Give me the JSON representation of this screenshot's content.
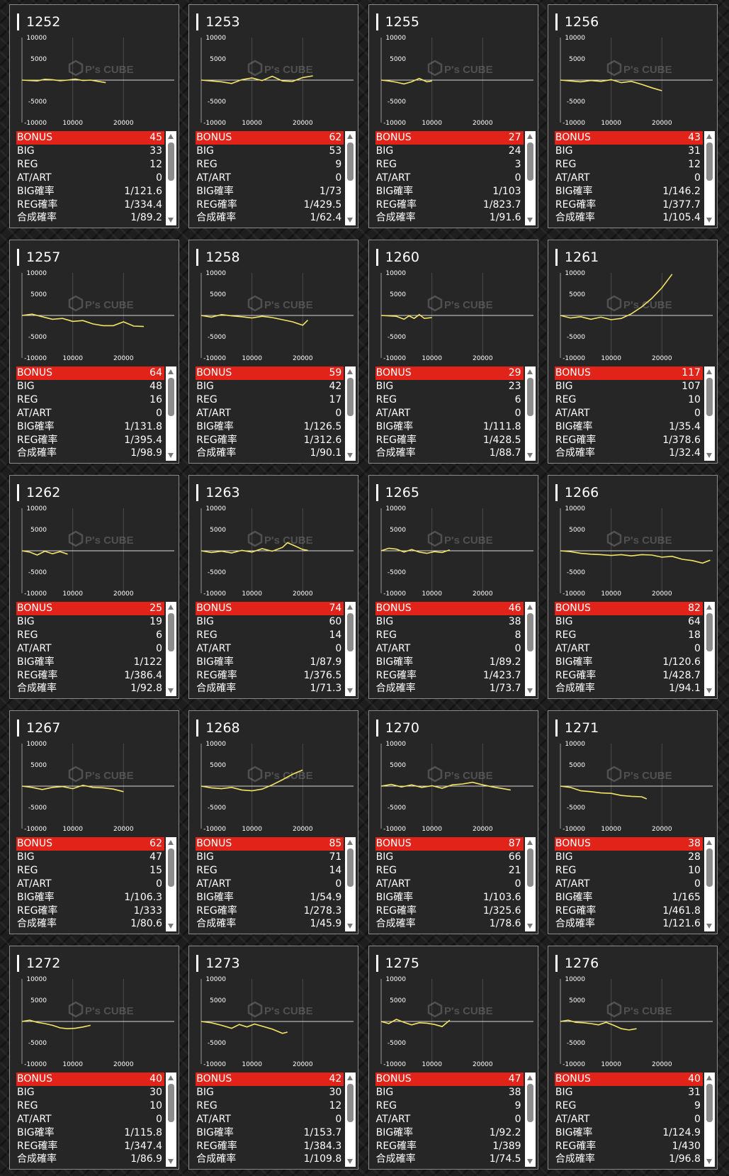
{
  "labels": {
    "bonus": "BONUS",
    "big": "BIG",
    "reg": "REG",
    "atart": "AT/ART",
    "big_prob": "BIG確率",
    "reg_prob": "REG確率",
    "total_prob": "合成確率"
  },
  "axis": {
    "y_ticks": [
      "10000",
      "5000",
      "-5000",
      "-10000"
    ],
    "x_ticks": [
      "10000",
      "20000"
    ]
  },
  "watermark": {
    "logo": "P's CUBE"
  },
  "colors": {
    "line": "#f2e566",
    "bonus_bar": "#e2231a",
    "background": "#262626"
  },
  "machines": [
    {
      "num": "1252",
      "bonus": "45",
      "big": "33",
      "reg": "12",
      "atart": "0",
      "big_prob": "1/121.6",
      "reg_prob": "1/334.4",
      "total_prob": "1/89.2",
      "chart_data": {
        "type": "line",
        "xlim": [
          0,
          30000
        ],
        "ylim": [
          -10000,
          10000
        ],
        "x": [
          0,
          1500,
          3000,
          4500,
          6000,
          7500,
          9000,
          10500,
          12000,
          13500,
          15000,
          16500
        ],
        "y": [
          0,
          -100,
          -200,
          200,
          100,
          -150,
          0,
          250,
          -100,
          0,
          -300,
          -600
        ]
      }
    },
    {
      "num": "1253",
      "bonus": "62",
      "big": "53",
      "reg": "9",
      "atart": "0",
      "big_prob": "1/73",
      "reg_prob": "1/429.5",
      "total_prob": "1/62.4",
      "chart_data": {
        "type": "line",
        "xlim": [
          0,
          30000
        ],
        "ylim": [
          -10000,
          10000
        ],
        "x": [
          0,
          2000,
          4000,
          6000,
          8000,
          10000,
          12000,
          14000,
          16000,
          18000,
          20000,
          22000
        ],
        "y": [
          0,
          -200,
          -400,
          -800,
          100,
          500,
          -100,
          900,
          -200,
          -300,
          600,
          1000
        ]
      }
    },
    {
      "num": "1255",
      "bonus": "27",
      "big": "24",
      "reg": "3",
      "atart": "0",
      "big_prob": "1/103",
      "reg_prob": "1/823.7",
      "total_prob": "1/91.6",
      "chart_data": {
        "type": "line",
        "xlim": [
          0,
          30000
        ],
        "ylim": [
          -10000,
          10000
        ],
        "x": [
          0,
          1500,
          3000,
          4500,
          6000,
          7500,
          9000,
          10000
        ],
        "y": [
          0,
          -200,
          -500,
          -900,
          -400,
          400,
          -400,
          -200
        ]
      }
    },
    {
      "num": "1256",
      "bonus": "43",
      "big": "31",
      "reg": "12",
      "atart": "0",
      "big_prob": "1/146.2",
      "reg_prob": "1/377.7",
      "total_prob": "1/105.4",
      "chart_data": {
        "type": "line",
        "xlim": [
          0,
          30000
        ],
        "ylim": [
          -10000,
          10000
        ],
        "x": [
          0,
          2000,
          4000,
          6000,
          8000,
          10000,
          12000,
          14000,
          16000,
          18000,
          20000
        ],
        "y": [
          0,
          -200,
          -400,
          -100,
          -300,
          100,
          -600,
          -300,
          -1000,
          -1800,
          -2500
        ]
      }
    },
    {
      "num": "1257",
      "bonus": "64",
      "big": "48",
      "reg": "16",
      "atart": "0",
      "big_prob": "1/131.8",
      "reg_prob": "1/395.4",
      "total_prob": "1/98.9",
      "chart_data": {
        "type": "line",
        "xlim": [
          0,
          30000
        ],
        "ylim": [
          -10000,
          10000
        ],
        "x": [
          0,
          2000,
          4000,
          6000,
          8000,
          10000,
          12000,
          14000,
          16000,
          18000,
          20000,
          22000,
          24000
        ],
        "y": [
          0,
          300,
          -300,
          -900,
          -700,
          -1400,
          -1200,
          -2000,
          -2400,
          -2400,
          -1500,
          -2500,
          -2600
        ]
      }
    },
    {
      "num": "1258",
      "bonus": "59",
      "big": "42",
      "reg": "17",
      "atart": "0",
      "big_prob": "1/126.5",
      "reg_prob": "1/312.6",
      "total_prob": "1/90.1",
      "chart_data": {
        "type": "line",
        "xlim": [
          0,
          30000
        ],
        "ylim": [
          -10000,
          10000
        ],
        "x": [
          0,
          2000,
          4000,
          6000,
          8000,
          10000,
          12000,
          14000,
          16000,
          18000,
          20000,
          21000
        ],
        "y": [
          0,
          -400,
          200,
          -100,
          -300,
          -600,
          -200,
          -500,
          -1000,
          -1500,
          -2300,
          -1100
        ]
      }
    },
    {
      "num": "1260",
      "bonus": "29",
      "big": "23",
      "reg": "6",
      "atart": "0",
      "big_prob": "1/111.8",
      "reg_prob": "1/428.5",
      "total_prob": "1/88.7",
      "chart_data": {
        "type": "line",
        "xlim": [
          0,
          30000
        ],
        "ylim": [
          -10000,
          10000
        ],
        "x": [
          0,
          1500,
          3000,
          4500,
          5500,
          6500,
          7500,
          8500,
          10000
        ],
        "y": [
          0,
          -100,
          -200,
          -900,
          -100,
          -700,
          200,
          -700,
          -500
        ]
      }
    },
    {
      "num": "1261",
      "bonus": "117",
      "big": "107",
      "reg": "10",
      "atart": "0",
      "big_prob": "1/35.4",
      "reg_prob": "1/378.6",
      "total_prob": "1/32.4",
      "chart_data": {
        "type": "line",
        "xlim": [
          0,
          30000
        ],
        "ylim": [
          -10000,
          10000
        ],
        "x": [
          0,
          2000,
          4000,
          6000,
          8000,
          10000,
          12000,
          14000,
          16000,
          18000,
          20000,
          22000
        ],
        "y": [
          0,
          -600,
          -300,
          -900,
          -400,
          -1000,
          -700,
          400,
          2000,
          4000,
          6500,
          9700
        ]
      }
    },
    {
      "num": "1262",
      "bonus": "25",
      "big": "19",
      "reg": "6",
      "atart": "0",
      "big_prob": "1/122",
      "reg_prob": "1/386.4",
      "total_prob": "1/92.8",
      "chart_data": {
        "type": "line",
        "xlim": [
          0,
          30000
        ],
        "ylim": [
          -10000,
          10000
        ],
        "x": [
          0,
          1500,
          3000,
          4500,
          6000,
          7500,
          9000
        ],
        "y": [
          0,
          -300,
          -1000,
          -100,
          -700,
          -200,
          -800
        ]
      }
    },
    {
      "num": "1263",
      "bonus": "74",
      "big": "60",
      "reg": "14",
      "atart": "0",
      "big_prob": "1/87.9",
      "reg_prob": "1/376.5",
      "total_prob": "1/71.3",
      "chart_data": {
        "type": "line",
        "xlim": [
          0,
          30000
        ],
        "ylim": [
          -10000,
          10000
        ],
        "x": [
          0,
          2000,
          4000,
          6000,
          8000,
          10000,
          12000,
          14000,
          16000,
          17000,
          18000,
          20000,
          21000
        ],
        "y": [
          0,
          -400,
          -100,
          -500,
          100,
          -300,
          500,
          -100,
          800,
          1900,
          1400,
          300,
          100
        ]
      }
    },
    {
      "num": "1265",
      "bonus": "46",
      "big": "38",
      "reg": "8",
      "atart": "0",
      "big_prob": "1/89.2",
      "reg_prob": "1/423.7",
      "total_prob": "1/73.7",
      "chart_data": {
        "type": "line",
        "xlim": [
          0,
          30000
        ],
        "ylim": [
          -10000,
          10000
        ],
        "x": [
          0,
          1500,
          3000,
          4500,
          6000,
          7500,
          9000,
          10500,
          12000,
          13500
        ],
        "y": [
          0,
          600,
          400,
          -300,
          300,
          -300,
          -600,
          -200,
          -400,
          200
        ]
      }
    },
    {
      "num": "1266",
      "bonus": "82",
      "big": "64",
      "reg": "18",
      "atart": "0",
      "big_prob": "1/120.6",
      "reg_prob": "1/428.7",
      "total_prob": "1/94.1",
      "chart_data": {
        "type": "line",
        "xlim": [
          0,
          30000
        ],
        "ylim": [
          -10000,
          10000
        ],
        "x": [
          0,
          2000,
          4000,
          6000,
          8000,
          10000,
          12000,
          14000,
          16000,
          18000,
          20000,
          22000,
          24000,
          26000,
          28000,
          29500
        ],
        "y": [
          0,
          -200,
          -600,
          -800,
          -900,
          -1100,
          -900,
          -1200,
          -900,
          -1000,
          -1500,
          -1300,
          -2000,
          -2300,
          -2900,
          -2200
        ]
      }
    },
    {
      "num": "1267",
      "bonus": "62",
      "big": "47",
      "reg": "15",
      "atart": "0",
      "big_prob": "1/106.3",
      "reg_prob": "1/333",
      "total_prob": "1/80.6",
      "chart_data": {
        "type": "line",
        "xlim": [
          0,
          30000
        ],
        "ylim": [
          -10000,
          10000
        ],
        "x": [
          0,
          2000,
          4000,
          6000,
          8000,
          10000,
          12000,
          14000,
          16000,
          18000,
          20000
        ],
        "y": [
          0,
          -300,
          -800,
          -300,
          -100,
          -600,
          200,
          -300,
          -400,
          -700,
          -1300
        ]
      }
    },
    {
      "num": "1268",
      "bonus": "85",
      "big": "71",
      "reg": "14",
      "atart": "0",
      "big_prob": "1/54.9",
      "reg_prob": "1/278.3",
      "total_prob": "1/45.9",
      "chart_data": {
        "type": "line",
        "xlim": [
          0,
          30000
        ],
        "ylim": [
          -10000,
          10000
        ],
        "x": [
          0,
          2000,
          4000,
          6000,
          8000,
          10000,
          12000,
          14000,
          16000,
          18000,
          20000
        ],
        "y": [
          0,
          -400,
          -600,
          -300,
          -900,
          -1100,
          -700,
          300,
          1500,
          2800,
          3800
        ]
      }
    },
    {
      "num": "1270",
      "bonus": "87",
      "big": "66",
      "reg": "21",
      "atart": "0",
      "big_prob": "1/103.6",
      "reg_prob": "1/325.6",
      "total_prob": "1/78.6",
      "chart_data": {
        "type": "line",
        "xlim": [
          0,
          30000
        ],
        "ylim": [
          -10000,
          10000
        ],
        "x": [
          0,
          2000,
          4000,
          6000,
          8000,
          10000,
          12000,
          14000,
          16000,
          18000,
          20000,
          22000,
          24000,
          25500
        ],
        "y": [
          0,
          400,
          -200,
          300,
          -300,
          100,
          -500,
          300,
          500,
          900,
          300,
          -200,
          -600,
          -900
        ]
      }
    },
    {
      "num": "1271",
      "bonus": "38",
      "big": "28",
      "reg": "10",
      "atart": "0",
      "big_prob": "1/165",
      "reg_prob": "1/461.8",
      "total_prob": "1/121.6",
      "chart_data": {
        "type": "line",
        "xlim": [
          0,
          30000
        ],
        "ylim": [
          -10000,
          10000
        ],
        "x": [
          0,
          2000,
          4000,
          6000,
          8000,
          10000,
          12000,
          14000,
          16000,
          17000
        ],
        "y": [
          0,
          -300,
          -1100,
          -1300,
          -1600,
          -1700,
          -2200,
          -2400,
          -2500,
          -3000
        ]
      }
    },
    {
      "num": "1272",
      "bonus": "40",
      "big": "30",
      "reg": "10",
      "atart": "0",
      "big_prob": "1/115.8",
      "reg_prob": "1/347.4",
      "total_prob": "1/86.9",
      "chart_data": {
        "type": "line",
        "xlim": [
          0,
          30000
        ],
        "ylim": [
          -10000,
          10000
        ],
        "x": [
          0,
          1500,
          3000,
          4500,
          6000,
          7500,
          9000,
          10500,
          12000,
          13500
        ],
        "y": [
          0,
          300,
          -200,
          -500,
          -900,
          -1500,
          -1700,
          -1600,
          -1300,
          -900
        ]
      }
    },
    {
      "num": "1273",
      "bonus": "42",
      "big": "30",
      "reg": "12",
      "atart": "0",
      "big_prob": "1/153.7",
      "reg_prob": "1/384.3",
      "total_prob": "1/109.8",
      "chart_data": {
        "type": "line",
        "xlim": [
          0,
          30000
        ],
        "ylim": [
          -10000,
          10000
        ],
        "x": [
          0,
          2000,
          4000,
          6000,
          7500,
          9000,
          10500,
          12000,
          14000,
          16000,
          17000
        ],
        "y": [
          0,
          -300,
          -900,
          -1600,
          -700,
          -1300,
          -600,
          -1100,
          -1800,
          -2800,
          -2500
        ]
      }
    },
    {
      "num": "1275",
      "bonus": "47",
      "big": "38",
      "reg": "9",
      "atart": "0",
      "big_prob": "1/92.2",
      "reg_prob": "1/389",
      "total_prob": "1/74.5",
      "chart_data": {
        "type": "line",
        "xlim": [
          0,
          30000
        ],
        "ylim": [
          -10000,
          10000
        ],
        "x": [
          0,
          1500,
          3000,
          4500,
          6000,
          7500,
          9000,
          10500,
          12000,
          13500
        ],
        "y": [
          0,
          -500,
          500,
          -200,
          -800,
          -300,
          -400,
          -700,
          -1200,
          300
        ]
      }
    },
    {
      "num": "1276",
      "bonus": "40",
      "big": "31",
      "reg": "9",
      "atart": "0",
      "big_prob": "1/124.9",
      "reg_prob": "1/430",
      "total_prob": "1/96.8",
      "chart_data": {
        "type": "line",
        "xlim": [
          0,
          30000
        ],
        "ylim": [
          -10000,
          10000
        ],
        "x": [
          0,
          1500,
          3000,
          4500,
          6000,
          7500,
          9000,
          10500,
          12000,
          13500,
          15000
        ],
        "y": [
          0,
          300,
          -200,
          -300,
          -500,
          -800,
          -200,
          -900,
          -1700,
          -2000,
          -1700
        ]
      }
    }
  ]
}
